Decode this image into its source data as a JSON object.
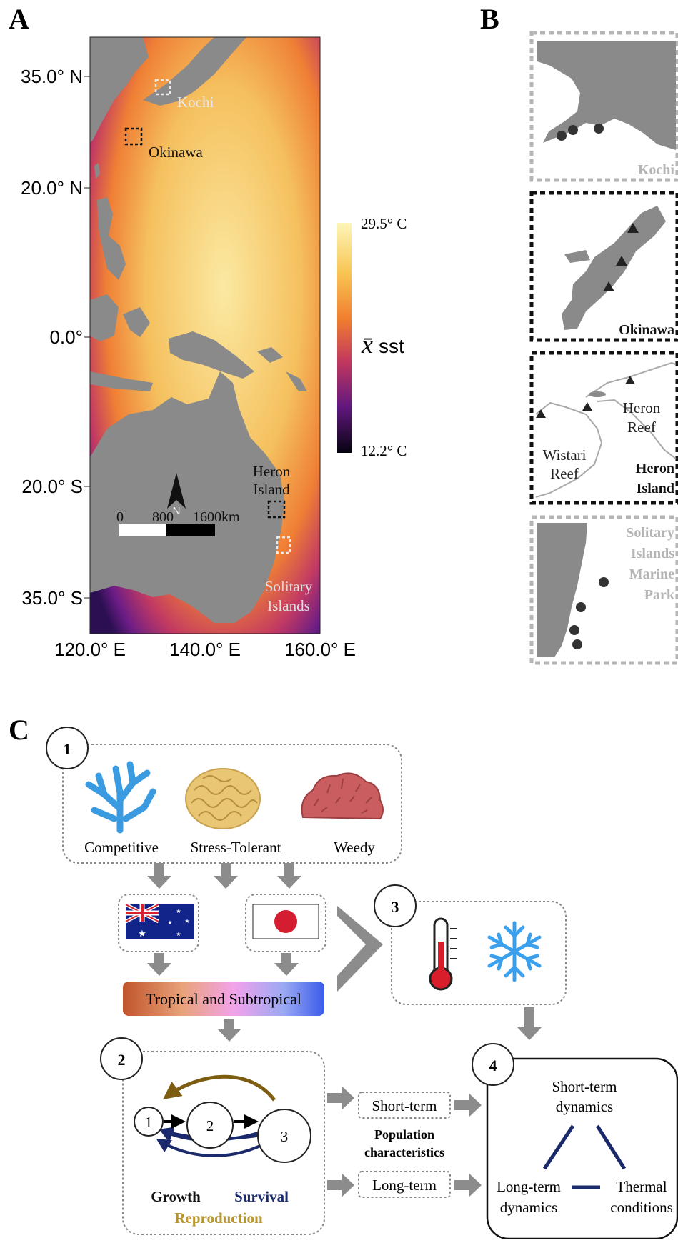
{
  "panels": {
    "a": "A",
    "b": "B",
    "c": "C"
  },
  "map": {
    "lat_ticks": [
      "35.0° N",
      "20.0° N",
      "0.0°",
      "20.0° S",
      "35.0° S"
    ],
    "lon_ticks": [
      "120.0° E",
      "140.0° E",
      "160.0° E"
    ],
    "site_labels": {
      "kochi": "Kochi",
      "okinawa": "Okinawa",
      "heron_1": "Heron",
      "heron_2": "Island",
      "solitary_1": "Solitary",
      "solitary_2": "Islands"
    },
    "colorbar": {
      "max": "29.5° C",
      "min": "12.2° C",
      "symbol": "x̄",
      "subscript": "sst"
    },
    "north": "N",
    "scalebar": [
      "0",
      "800",
      "1600km"
    ],
    "colors": {
      "land": "#8a8a8a",
      "sea_warm": "#f6d77a",
      "sea_cool": "#4a1680"
    }
  },
  "insets": {
    "kochi": "Kochi",
    "okinawa": "Okinawa",
    "heron_island_1": "Heron",
    "heron_island_2": "Island",
    "heron_reef_1": "Heron",
    "heron_reef_2": "Reef",
    "wistari_reef_1": "Wistari",
    "wistari_reef_2": "Reef",
    "solitary": [
      "Solitary",
      "Islands",
      "Marine",
      "Park"
    ]
  },
  "diagram": {
    "steps": [
      "1",
      "2",
      "3",
      "4"
    ],
    "coral_types": [
      "Competitive",
      "Stress-Tolerant",
      "Weedy"
    ],
    "region_bar": "Tropical and Subtropical",
    "stages": [
      "1",
      "2",
      "3"
    ],
    "vital_rates": {
      "growth": "Growth",
      "survival": "Survival",
      "reproduction": "Reproduction"
    },
    "short_term": "Short-term",
    "long_term": "Long-term",
    "population_characteristics_1": "Population",
    "population_characteristics_2": "characteristics",
    "outcome": {
      "short_1": "Short-term",
      "short_2": "dynamics",
      "long_1": "Long-term",
      "long_2": "dynamics",
      "thermal_1": "Thermal",
      "thermal_2": "conditions"
    },
    "colors": {
      "survival": "#1a2a6c",
      "reproduction": "#b8962e",
      "arrow": "#8c8c8c",
      "competitive": "#3a9be0",
      "stress_tolerant": "#e8c673",
      "weedy": "#c95d5f"
    }
  }
}
